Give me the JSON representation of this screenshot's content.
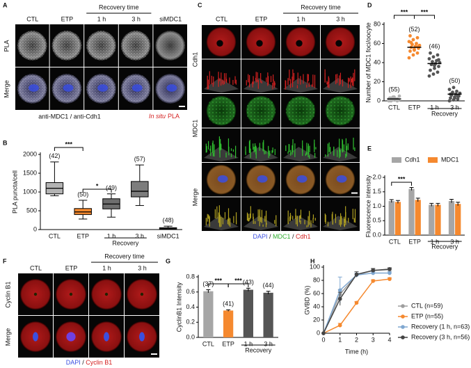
{
  "panels": {
    "A": {
      "label": "A",
      "columns": [
        "CTL",
        "ETP",
        "1 h",
        "3 h",
        "siMDC1"
      ],
      "column_group": "Recovery time",
      "rows": [
        "PLA",
        "Merge"
      ],
      "caption": "anti-MDC1 / anti-Cdh1",
      "caption_italic": "In situ",
      "caption_red": "PLA"
    },
    "C": {
      "label": "C",
      "columns": [
        "CTL",
        "ETP",
        "1 h",
        "3 h"
      ],
      "column_group": "Recovery time",
      "rows": [
        "Cdh1",
        "MDC1",
        "Merge"
      ],
      "caption_parts": [
        "DAPI",
        " / ",
        "MDC1",
        " / ",
        "Cdh1"
      ]
    },
    "F": {
      "label": "F",
      "columns": [
        "CTL",
        "ETP",
        "1 h",
        "3 h"
      ],
      "column_group": "Recovery time",
      "rows": [
        "Cyclin B1",
        "Merge"
      ],
      "caption_parts": [
        "DAPI",
        " / ",
        "Cyclin B1"
      ]
    }
  },
  "chart_data": [
    {
      "type": "box",
      "panel_label": "B",
      "y_label": "PLA puncta/cell",
      "categories": [
        "CTL",
        "ETP",
        "1 h",
        "3 h",
        "siMDC1"
      ],
      "group_label": "Recovery",
      "min": [
        900,
        280,
        330,
        640,
        0
      ],
      "q1": [
        950,
        400,
        550,
        870,
        10
      ],
      "median": [
        1100,
        470,
        680,
        1020,
        20
      ],
      "q3": [
        1250,
        560,
        820,
        1280,
        50
      ],
      "max": [
        1800,
        780,
        950,
        1720,
        90
      ],
      "colors": [
        "#b3b3b3",
        "#f5892f",
        "#6e6e6e",
        "#7d7d7d",
        "#555555"
      ],
      "n_labels": [
        "(42)",
        "(50)",
        "(49)",
        "(57)",
        "(48)"
      ],
      "significance": [
        "***",
        "*"
      ],
      "ylim": [
        0,
        2000
      ],
      "yticks": [
        0,
        500,
        1000,
        1500,
        2000
      ]
    },
    {
      "type": "dot",
      "panel_label": "D",
      "y_label": "Number of MDC1 foci/oocyte",
      "categories": [
        "CTL",
        "ETP",
        "1 h",
        "3 h"
      ],
      "group_label": "Recovery",
      "points": [
        [
          0,
          1,
          2,
          3,
          4,
          1,
          0,
          2,
          5,
          3,
          1,
          2,
          4,
          0,
          3
        ],
        [
          45,
          48,
          50,
          52,
          54,
          55,
          56,
          57,
          58,
          59,
          60,
          62,
          64,
          66,
          68,
          53,
          57,
          61
        ],
        [
          26,
          28,
          30,
          32,
          34,
          36,
          38,
          39,
          40,
          41,
          42,
          44,
          46,
          48,
          50,
          37,
          43
        ],
        [
          0,
          1,
          2,
          3,
          4,
          5,
          6,
          7,
          8,
          9,
          10,
          12,
          14,
          5,
          7,
          3
        ]
      ],
      "means": [
        2,
        56,
        39,
        7
      ],
      "colors": [
        "#b3b3b3",
        "#f5892f",
        "#555555",
        "#555555"
      ],
      "n_labels": [
        "(55)",
        "(52)",
        "(46)",
        "(50)"
      ],
      "significance": [
        "***",
        "***"
      ],
      "ylim": [
        0,
        80
      ],
      "yticks": [
        0,
        20,
        40,
        60,
        80
      ]
    },
    {
      "type": "bar",
      "panel_label": "E",
      "y_label": "Fluorescence intensity",
      "categories": [
        "CTL",
        "ETP",
        "1 h",
        "3 h"
      ],
      "group_label": "Recovery",
      "series": [
        {
          "name": "Cdh1",
          "color": "#a6a6a6",
          "values": [
            1.18,
            1.6,
            1.05,
            1.18
          ],
          "errors": [
            0.05,
            0.05,
            0.05,
            0.06
          ]
        },
        {
          "name": "MDC1",
          "color": "#f5892f",
          "values": [
            1.15,
            1.22,
            1.05,
            1.08
          ],
          "errors": [
            0.05,
            0.06,
            0.05,
            0.06
          ]
        }
      ],
      "significance": [
        "***"
      ],
      "ylim": [
        0,
        2
      ],
      "yticks": [
        {
          "value": 0,
          "label": "0.0"
        },
        {
          "value": 0.5,
          "label": "0.5"
        },
        {
          "value": 1,
          "label": "1.0"
        },
        {
          "value": 1.5,
          "label": "1.5"
        },
        {
          "value": 2,
          "label": "2.0"
        }
      ]
    },
    {
      "type": "bar",
      "panel_label": "G",
      "y_label": "CyclinB1 Intensity",
      "categories": [
        "CTL",
        "ETP",
        "1 h",
        "3 h"
      ],
      "group_label": "Recovery",
      "values": [
        0.61,
        0.355,
        0.63,
        0.59
      ],
      "errors": [
        0.02,
        0.01,
        0.02,
        0.02
      ],
      "colors": [
        "#a6a6a6",
        "#f5892f",
        "#555555",
        "#555555"
      ],
      "n_labels": [
        "(37)",
        "(41)",
        "(43)",
        "(44)"
      ],
      "significance": [
        "***",
        "***"
      ],
      "ylim": [
        0,
        0.8
      ],
      "yticks": [
        {
          "value": 0,
          "label": "0.0"
        },
        {
          "value": 0.2,
          "label": "0.2"
        },
        {
          "value": 0.4,
          "label": "0.4"
        },
        {
          "value": 0.6,
          "label": "0.6"
        },
        {
          "value": 0.8,
          "label": "0.8"
        }
      ]
    },
    {
      "type": "line",
      "panel_label": "H",
      "x_label": "Time (h)",
      "y_label": "GVBD (%)",
      "x": [
        0,
        1,
        2,
        3,
        4
      ],
      "series": [
        {
          "name": "CTL (n=59)",
          "color": "#9e9e9e",
          "values": [
            0,
            59,
            88,
            95,
            96
          ],
          "errors": [
            0,
            7,
            3,
            2,
            2
          ]
        },
        {
          "name": "ETP (n=55)",
          "color": "#f5892f",
          "values": [
            0,
            12,
            46,
            79,
            82
          ],
          "errors": [
            0,
            3,
            2,
            2,
            2
          ]
        },
        {
          "name": "Recovery (1 h, n=63)",
          "color": "#7fa7d0",
          "values": [
            0,
            65,
            88,
            91,
            91
          ],
          "errors": [
            0,
            20,
            3,
            2,
            2
          ]
        },
        {
          "name": "Recovery (3 h, n=56)",
          "color": "#444444",
          "values": [
            0,
            52,
            89,
            95,
            97
          ],
          "errors": [
            0,
            10,
            4,
            3,
            2
          ]
        }
      ],
      "xlim": [
        0,
        4
      ],
      "xticks": [
        0,
        1,
        2,
        3,
        4
      ],
      "ylim": [
        0,
        100
      ],
      "yticks": [
        0,
        20,
        40,
        60,
        80,
        100
      ]
    }
  ]
}
